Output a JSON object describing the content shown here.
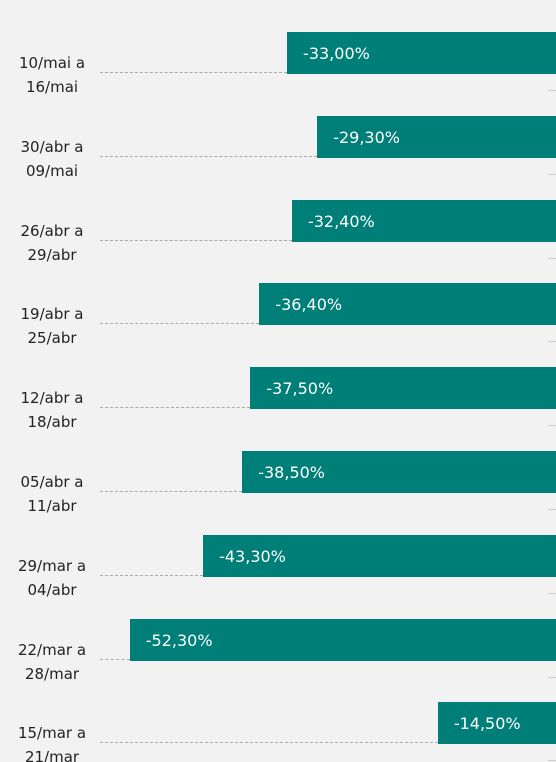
{
  "chart_data": {
    "type": "barh",
    "categories": [
      "10/mai a 16/mai",
      "30/abr a 09/mai",
      "26/abr a 29/abr",
      "19/abr a 25/abr",
      "12/abr a 18/abr",
      "05/abr a 11/abr",
      "29/mar a 04/abr",
      "22/mar a 28/mar",
      "15/mar a 21/mar"
    ],
    "values": [
      -33,
      -29.3,
      -32.4,
      -36.4,
      -37.5,
      -38.5,
      -43.3,
      -52.3,
      -14.5
    ],
    "value_labels": [
      "-33,00%",
      "-29,30%",
      "-32,40%",
      "-36,40%",
      "-37,50%",
      "-38,50%",
      "-43,30%",
      "-52,30%",
      "-14,50%"
    ],
    "color": "#007f78",
    "xlim": [
      -60,
      0
    ]
  }
}
